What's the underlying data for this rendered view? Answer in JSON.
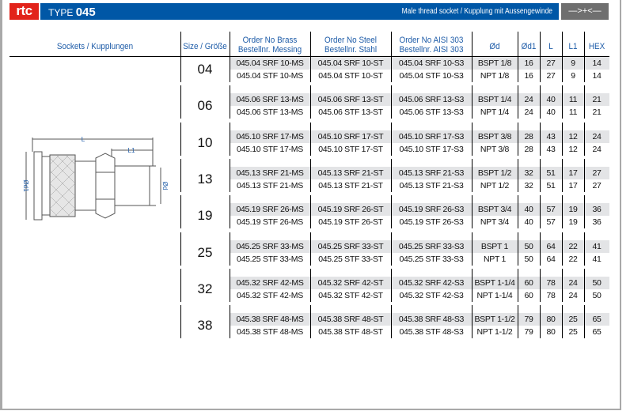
{
  "header": {
    "logo": "rtc",
    "type_label": "TYPE",
    "type_number": "045",
    "subtitle": "Male thread socket / Kupplung mit Aussengewinde",
    "symbol": "—>+<—"
  },
  "columns": {
    "product": "Sockets / Kupplungen",
    "size": "Size / Größe",
    "brass": [
      "Order No Brass",
      "Bestellnr. Messing"
    ],
    "steel": [
      "Order No Steel",
      "Bestellnr. Stahl"
    ],
    "aisi": [
      "Order No AISI 303",
      "Bestellnr. AISI 303"
    ],
    "od": "Ød",
    "od1": "Ød1",
    "l": "L",
    "l1": "L1",
    "hex": "HEX"
  },
  "drawing": {
    "labels": {
      "l": "L",
      "l1": "L1",
      "od": "Ød",
      "od1": "Ød1"
    },
    "colors": {
      "dim": "#1e5ca8"
    }
  },
  "colors": {
    "brand_red": "#e2231a",
    "brand_blue": "#0057a6",
    "header_text": "#1e5ca8",
    "row_shade": "#e3e4e6"
  },
  "groups": [
    {
      "size": "04",
      "rows": [
        [
          "045.04 SRF 10-MS",
          "045.04 SRF 10-ST",
          "045.04 SRF 10-S3",
          "BSPT 1/8",
          "16",
          "27",
          "9",
          "14"
        ],
        [
          "045.04 STF 10-MS",
          "045.04 STF 10-ST",
          "045.04 STF 10-S3",
          "NPT 1/8",
          "16",
          "27",
          "9",
          "14"
        ]
      ]
    },
    {
      "size": "06",
      "rows": [
        [
          "045.06 SRF 13-MS",
          "045.06 SRF 13-ST",
          "045.06 SRF 13-S3",
          "BSPT 1/4",
          "24",
          "40",
          "11",
          "21"
        ],
        [
          "045.06 STF 13-MS",
          "045.06 STF 13-ST",
          "045.06 STF 13-S3",
          "NPT 1/4",
          "24",
          "40",
          "11",
          "21"
        ]
      ]
    },
    {
      "size": "10",
      "rows": [
        [
          "045.10 SRF 17-MS",
          "045.10 SRF 17-ST",
          "045.10 SRF 17-S3",
          "BSPT 3/8",
          "28",
          "43",
          "12",
          "24"
        ],
        [
          "045.10 STF 17-MS",
          "045.10 STF 17-ST",
          "045.10 STF 17-S3",
          "NPT 3/8",
          "28",
          "43",
          "12",
          "24"
        ]
      ]
    },
    {
      "size": "13",
      "rows": [
        [
          "045.13 SRF 21-MS",
          "045.13 SRF 21-ST",
          "045.13 SRF 21-S3",
          "BSPT 1/2",
          "32",
          "51",
          "17",
          "27"
        ],
        [
          "045.13 STF 21-MS",
          "045.13 STF 21-ST",
          "045.13 STF 21-S3",
          "NPT 1/2",
          "32",
          "51",
          "17",
          "27"
        ]
      ]
    },
    {
      "size": "19",
      "rows": [
        [
          "045.19 SRF 26-MS",
          "045.19 SRF 26-ST",
          "045.19 SRF 26-S3",
          "BSPT 3/4",
          "40",
          "57",
          "19",
          "36"
        ],
        [
          "045.19 STF 26-MS",
          "045.19 STF 26-ST",
          "045.19 STF 26-S3",
          "NPT 3/4",
          "40",
          "57",
          "19",
          "36"
        ]
      ]
    },
    {
      "size": "25",
      "rows": [
        [
          "045.25 SRF 33-MS",
          "045.25 SRF 33-ST",
          "045.25 SRF 33-S3",
          "BSPT 1",
          "50",
          "64",
          "22",
          "41"
        ],
        [
          "045.25 STF 33-MS",
          "045.25 STF 33-ST",
          "045.25 STF 33-S3",
          "NPT 1",
          "50",
          "64",
          "22",
          "41"
        ]
      ]
    },
    {
      "size": "32",
      "rows": [
        [
          "045.32 SRF 42-MS",
          "045.32 SRF 42-ST",
          "045.32 SRF 42-S3",
          "BSPT 1-1/4",
          "60",
          "78",
          "24",
          "50"
        ],
        [
          "045.32 STF 42-MS",
          "045.32 STF 42-ST",
          "045.32 STF 42-S3",
          "NPT 1-1/4",
          "60",
          "78",
          "24",
          "50"
        ]
      ]
    },
    {
      "size": "38",
      "rows": [
        [
          "045.38 SRF 48-MS",
          "045.38 SRF 48-ST",
          "045.38 SRF 48-S3",
          "BSPT 1-1/2",
          "79",
          "80",
          "25",
          "65"
        ],
        [
          "045.38 STF 48-MS",
          "045.38 STF 48-ST",
          "045.38 STF 48-S3",
          "NPT 1-1/2",
          "79",
          "80",
          "25",
          "65"
        ]
      ]
    }
  ]
}
